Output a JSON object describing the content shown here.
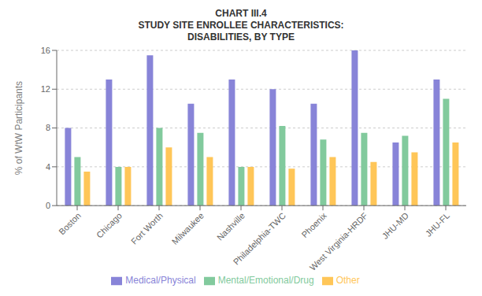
{
  "chart_data": {
    "type": "bar",
    "title": "CHART III.4\nSTUDY SITE ENROLLEE CHARACTERISTICS:\nDISABILITIES, BY TYPE",
    "ylabel": "% of WtW Participants",
    "categories": [
      "Boston",
      "Chicago",
      "Fort Worth",
      "Milwaukee",
      "Nashville",
      "Philadelphia-TWC",
      "Phoenix",
      "West Virginia-HRDF",
      "JHU-MD",
      "JHU-FL"
    ],
    "series": [
      {
        "name": "Medical/Physical",
        "color": "#8884d8",
        "values": [
          8.0,
          13.0,
          15.5,
          10.5,
          13.0,
          12.0,
          10.5,
          16.0,
          6.5,
          13.0
        ]
      },
      {
        "name": "Mental/Emotional/Drug",
        "color": "#82ca9d",
        "values": [
          5.0,
          4.0,
          8.0,
          7.5,
          4.0,
          8.2,
          6.8,
          7.5,
          7.2,
          11.0
        ]
      },
      {
        "name": "Other",
        "color": "#ffc658",
        "values": [
          3.5,
          4.0,
          6.0,
          5.0,
          4.0,
          3.8,
          5.0,
          4.5,
          5.5,
          6.5
        ]
      }
    ],
    "ylim": [
      0,
      16
    ],
    "yticks": [
      0,
      4,
      8,
      12,
      16
    ],
    "grid": true,
    "legend": "bottom"
  }
}
